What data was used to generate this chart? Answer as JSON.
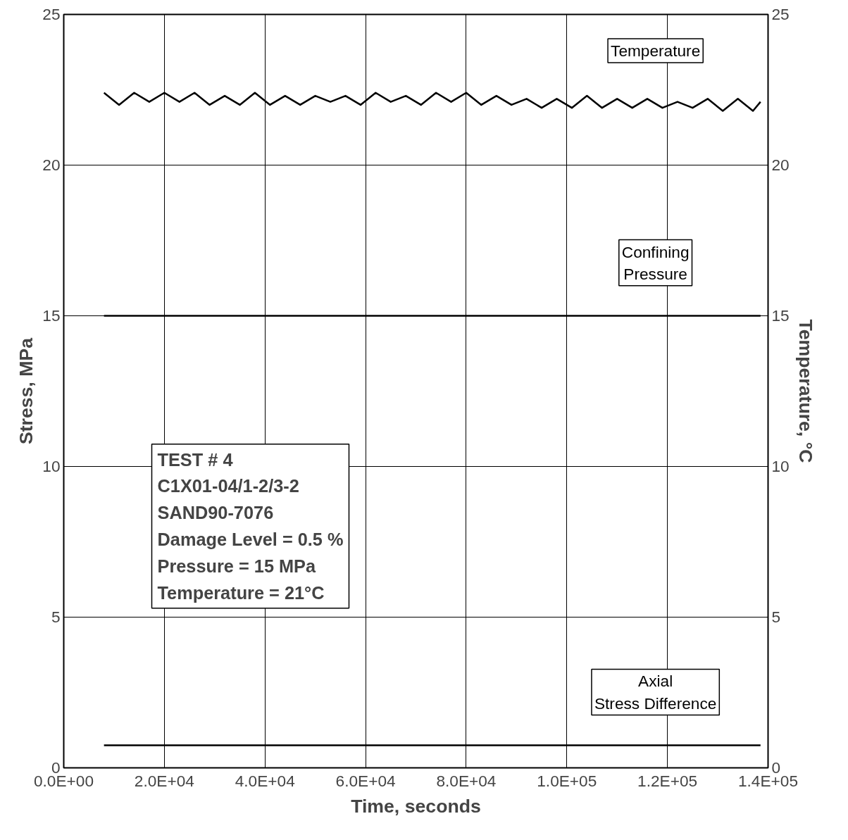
{
  "chart_data": {
    "type": "line",
    "xlabel": "Time, seconds",
    "ylabel": "Stress, MPa",
    "y2label": "Temperature, °C",
    "xlim": [
      0,
      140000
    ],
    "xticks": [
      {
        "value": 0,
        "label": "0.0E+00"
      },
      {
        "value": 20000,
        "label": "2.0E+04"
      },
      {
        "value": 40000,
        "label": "4.0E+04"
      },
      {
        "value": 60000,
        "label": "6.0E+04"
      },
      {
        "value": 80000,
        "label": "8.0E+04"
      },
      {
        "value": 100000,
        "label": "1.0E+05"
      },
      {
        "value": 120000,
        "label": "1.2E+05"
      },
      {
        "value": 140000,
        "label": "1.4E+05"
      }
    ],
    "ylim": [
      0,
      25
    ],
    "yticks": [
      0,
      5,
      10,
      15,
      20,
      25
    ],
    "y2lim": [
      0,
      25
    ],
    "y2ticks": [
      0,
      5,
      10,
      15,
      20,
      25
    ],
    "grid": true,
    "line_style": "solid",
    "series": [
      {
        "name": "Temperature",
        "color": "#000000",
        "x": [
          8000,
          11000,
          14000,
          17000,
          20000,
          23000,
          26000,
          29000,
          32000,
          35000,
          38000,
          41000,
          44000,
          47000,
          50000,
          53000,
          56000,
          59000,
          62000,
          65000,
          68000,
          71000,
          74000,
          77000,
          80000,
          83000,
          86000,
          89000,
          92000,
          95000,
          98000,
          101000,
          104000,
          107000,
          110000,
          113000,
          116000,
          119000,
          122000,
          125000,
          128000,
          131000,
          134000,
          137000,
          138500
        ],
        "values": [
          22.4,
          22.0,
          22.4,
          22.1,
          22.4,
          22.1,
          22.4,
          22.0,
          22.3,
          22.0,
          22.4,
          22.0,
          22.3,
          22.0,
          22.3,
          22.1,
          22.3,
          22.0,
          22.4,
          22.1,
          22.3,
          22.0,
          22.4,
          22.1,
          22.4,
          22.0,
          22.3,
          22.0,
          22.2,
          21.9,
          22.2,
          21.9,
          22.3,
          21.9,
          22.2,
          21.9,
          22.2,
          21.9,
          22.1,
          21.9,
          22.2,
          21.8,
          22.2,
          21.8,
          22.1
        ]
      },
      {
        "name": "Confining Pressure",
        "color": "#000000",
        "x": [
          8000,
          138500
        ],
        "values": [
          15.0,
          15.0
        ]
      },
      {
        "name": "Axial Stress Difference",
        "color": "#000000",
        "x": [
          8000,
          138500
        ],
        "values": [
          0.75,
          0.75
        ]
      }
    ],
    "annotations": [
      "TEST # 4",
      "C1X01-04/1-2/3-2",
      "SAND90-7076",
      "Damage Level = 0.5 %",
      "Pressure = 15 MPa",
      "Temperature = 21°C"
    ]
  }
}
